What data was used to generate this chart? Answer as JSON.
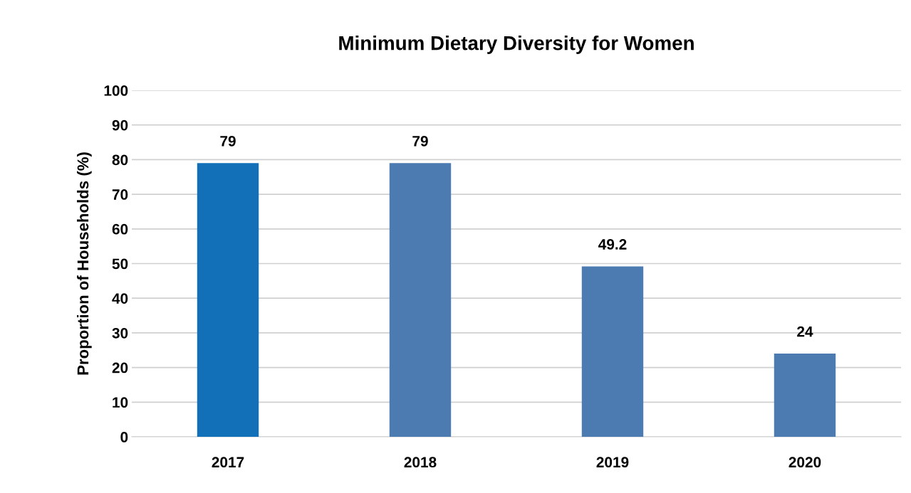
{
  "chart_data": {
    "type": "bar",
    "title": "Minimum Dietary Diversity for Women",
    "ylabel": "Proportion of Households (%)",
    "categories": [
      "2017",
      "2018",
      "2019",
      "2020"
    ],
    "values": [
      79,
      79,
      49.2,
      24
    ],
    "colors": [
      "#1170b8",
      "#4b7bb0",
      "#4b7bb0",
      "#4b7bb0"
    ],
    "ylim": [
      0,
      100
    ],
    "yticks": [
      0,
      10,
      20,
      30,
      40,
      50,
      60,
      70,
      80,
      90,
      100
    ],
    "grid": "y",
    "data_labels": true
  }
}
